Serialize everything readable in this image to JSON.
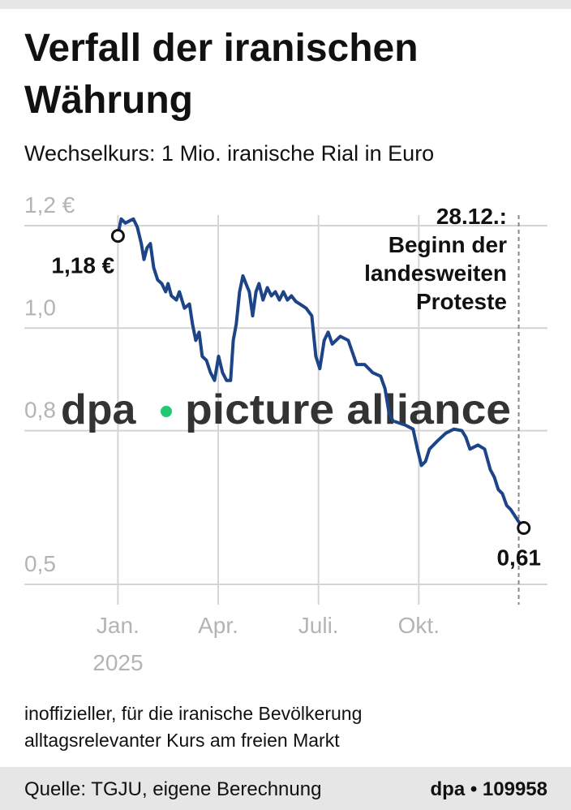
{
  "chart_data": {
    "type": "line",
    "title": "Verfall der iranischen Währung",
    "subtitle": "Wechselkurs: 1 Mio. iranische Rial in Euro",
    "series": [
      {
        "name": "Rial in Euro",
        "color": "#1c4486",
        "x": [
          1.0,
          1.1,
          1.22,
          1.34,
          1.46,
          1.58,
          1.7,
          1.78,
          1.87,
          1.97,
          2.07,
          2.19,
          2.31,
          2.43,
          2.5,
          2.6,
          2.75,
          2.84,
          2.99,
          3.14,
          3.23,
          3.33,
          3.43,
          3.52,
          3.65,
          3.77,
          3.89,
          4.01,
          4.13,
          4.25,
          4.37,
          4.45,
          4.54,
          4.64,
          4.74,
          4.83,
          4.93,
          5.03,
          5.13,
          5.22,
          5.34,
          5.47,
          5.59,
          5.71,
          5.83,
          5.95,
          6.07,
          6.19,
          6.32,
          6.44,
          6.63,
          6.8,
          6.92,
          7.04,
          7.17,
          7.29,
          7.41,
          7.65,
          7.89,
          8.14,
          8.38,
          8.62,
          8.86,
          8.99,
          9.11,
          9.23,
          9.59,
          9.83,
          9.96,
          10.08,
          10.2,
          10.32,
          10.56,
          10.81,
          11.05,
          11.29,
          11.41,
          11.53,
          11.77,
          11.97,
          12.14,
          12.26,
          12.38,
          12.5,
          12.63,
          12.75,
          12.99,
          13.14
        ],
        "values": [
          1.184,
          1.213,
          1.205,
          1.209,
          1.213,
          1.197,
          1.165,
          1.134,
          1.157,
          1.165,
          1.118,
          1.094,
          1.087,
          1.071,
          1.087,
          1.063,
          1.055,
          1.071,
          1.039,
          1.047,
          1.008,
          0.976,
          0.992,
          0.945,
          0.937,
          0.913,
          0.898,
          0.945,
          0.913,
          0.898,
          0.898,
          0.976,
          1.008,
          1.071,
          1.102,
          1.087,
          1.071,
          1.024,
          1.071,
          1.087,
          1.055,
          1.079,
          1.063,
          1.071,
          1.055,
          1.071,
          1.055,
          1.063,
          1.052,
          1.047,
          1.039,
          1.024,
          0.945,
          0.921,
          0.976,
          0.992,
          0.969,
          0.984,
          0.976,
          0.929,
          0.929,
          0.913,
          0.906,
          0.882,
          0.835,
          0.819,
          0.811,
          0.803,
          0.764,
          0.732,
          0.74,
          0.764,
          0.78,
          0.795,
          0.803,
          0.8,
          0.787,
          0.764,
          0.772,
          0.764,
          0.724,
          0.709,
          0.685,
          0.677,
          0.654,
          0.646,
          0.622,
          0.611
        ]
      }
    ],
    "point_labels": [
      {
        "x": 1.0,
        "value": 1.18,
        "label": "1,18 €"
      },
      {
        "x": 13.14,
        "value": 0.61,
        "label": "0,61"
      }
    ],
    "xlim": [
      -1.8,
      13.85
    ],
    "xticks": [
      {
        "value": 1,
        "label": "Jan."
      },
      {
        "value": 4,
        "label": "Apr."
      },
      {
        "value": 7,
        "label": "Juli."
      },
      {
        "value": 10,
        "label": "Okt."
      }
    ],
    "year_label": "2025",
    "ylim": [
      0.5,
      1.2
    ],
    "yticks": [
      {
        "value": 0.5,
        "label": "0,5"
      },
      {
        "value": 0.8,
        "label": "0,8"
      },
      {
        "value": 1.0,
        "label": "1,0"
      },
      {
        "value": 1.2,
        "label": "1,2 €"
      }
    ],
    "grid": true,
    "annotation": {
      "x": 12.99,
      "lines": [
        "28.12.:",
        "Beginn der",
        "landesweiten",
        "Proteste"
      ]
    },
    "watermark": {
      "left": "dpa",
      "right": "picture alliance"
    },
    "note_lines": [
      "inoffizieller, für die iranische Bevölkerung",
      "alltagsrelevanter Kurs am freien Markt"
    ],
    "source": "Quelle: TGJU, eigene Berechnung",
    "credit": "dpa • 109958"
  }
}
